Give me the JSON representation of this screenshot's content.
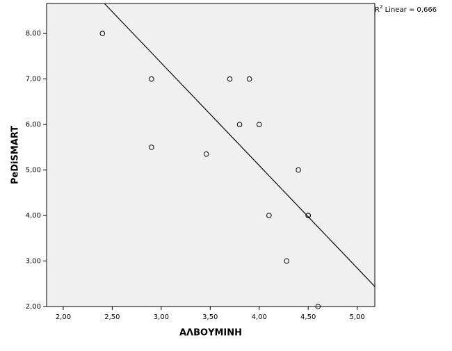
{
  "chart_data": {
    "type": "scatter",
    "x_label": "ΑΛΒΟΥΜΙΝΗ",
    "y_label": "PeDiSMART",
    "annotation": {
      "base": "R",
      "sup": "2",
      "text": " Linear = 0,666"
    },
    "x": [
      2.4,
      2.9,
      2.9,
      3.46,
      3.7,
      3.9,
      3.8,
      4.0,
      4.4,
      4.1,
      4.5,
      4.5,
      4.28,
      4.6
    ],
    "values": [
      8.0,
      7.0,
      5.5,
      5.35,
      7.0,
      7.0,
      6.0,
      6.0,
      5.0,
      4.0,
      4.0,
      4.0,
      3.0,
      2.0
    ],
    "fit_line": {
      "x": [
        2.42,
        5.18
      ],
      "y": [
        8.66,
        2.44
      ]
    },
    "color": "#000000",
    "background": "#f0f0f0",
    "xlim": [
      1.83,
      5.18
    ],
    "ylim": [
      2.0,
      8.66
    ],
    "xticks": [
      {
        "value": 2.0,
        "label": "2,00"
      },
      {
        "value": 2.5,
        "label": "2,50"
      },
      {
        "value": 3.0,
        "label": "3,00"
      },
      {
        "value": 3.5,
        "label": "3,50"
      },
      {
        "value": 4.0,
        "label": "4,00"
      },
      {
        "value": 4.5,
        "label": "4,50"
      },
      {
        "value": 5.0,
        "label": "5,00"
      }
    ],
    "yticks": [
      {
        "value": 2,
        "label": "2,00"
      },
      {
        "value": 3,
        "label": "3,00"
      },
      {
        "value": 4,
        "label": "4,00"
      },
      {
        "value": 5,
        "label": "5,00"
      },
      {
        "value": 6,
        "label": "6,00"
      },
      {
        "value": 7,
        "label": "7,00"
      },
      {
        "value": 8,
        "label": "8,00"
      }
    ],
    "grid": false
  }
}
